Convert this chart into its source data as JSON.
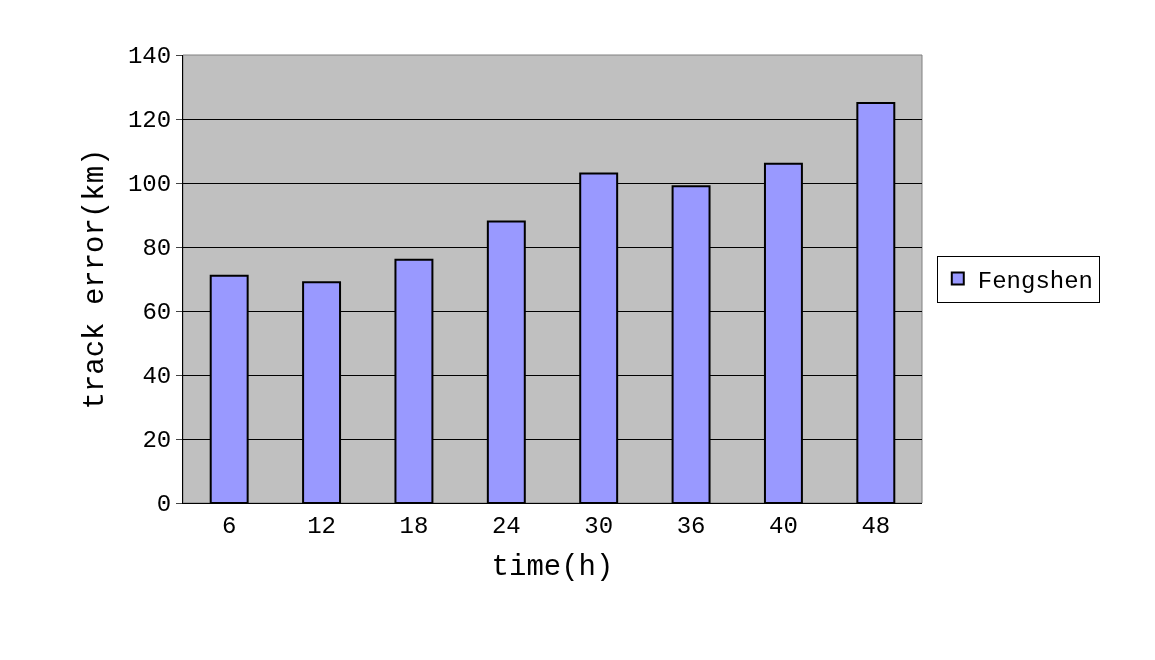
{
  "chart_data": {
    "type": "bar",
    "xlabel": "time(h)",
    "ylabel": "track error(km)",
    "categories": [
      "6",
      "12",
      "18",
      "24",
      "30",
      "36",
      "40",
      "48"
    ],
    "series": [
      {
        "name": "Fengshen",
        "color": "#9999ff",
        "values": [
          71,
          69,
          76,
          88,
          103,
          99,
          106,
          125
        ]
      }
    ],
    "ylim": [
      0,
      140
    ],
    "yticks": [
      0,
      20,
      40,
      60,
      80,
      100,
      120,
      140
    ],
    "grid": "y",
    "legend": "right"
  }
}
